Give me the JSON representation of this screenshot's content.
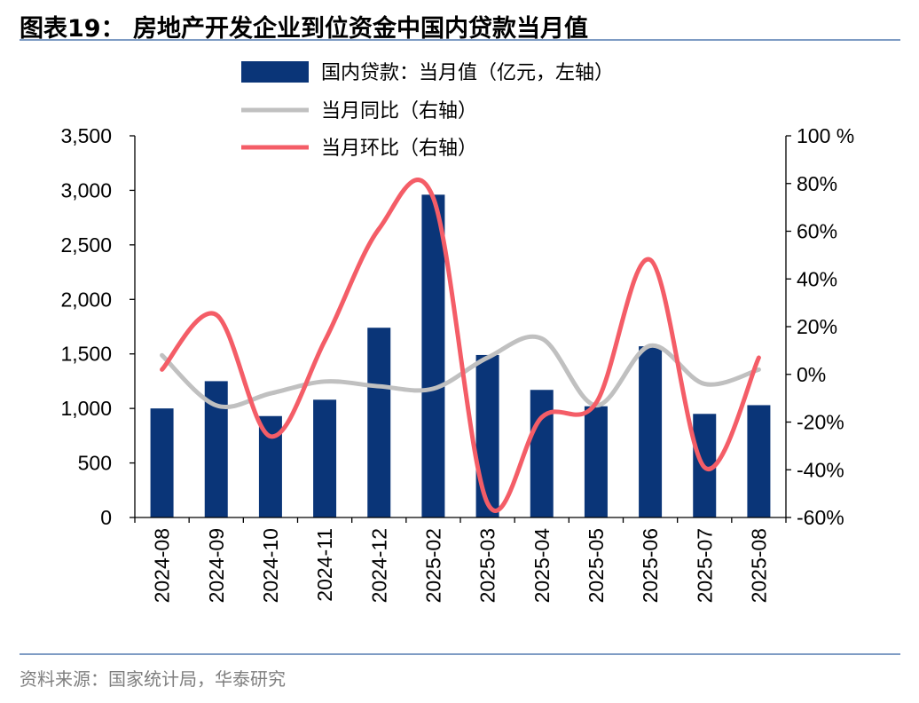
{
  "header": {
    "title": "图表19：  房地产开发企业到位资金中国内贷款当月值"
  },
  "footer": {
    "source": "资料来源：国家统计局，华泰研究"
  },
  "colors": {
    "bar": "#0a3578",
    "yoy_line": "#c0c0c0",
    "mom_line": "#f45d67",
    "rule": "#7f9cc4"
  },
  "chart_data": {
    "type": "bar",
    "categories": [
      "2024-08",
      "2024-09",
      "2024-10",
      "2024-11",
      "2024-12",
      "2025-02",
      "2025-03",
      "2025-04",
      "2025-05",
      "2025-06",
      "2025-07",
      "2025-08"
    ],
    "series": [
      {
        "name": "国内贷款：当月值（亿元，左轴）",
        "type": "bar",
        "axis": "left",
        "values": [
          1000,
          1250,
          930,
          1080,
          1740,
          2960,
          1490,
          1170,
          1020,
          1570,
          950,
          1030
        ]
      },
      {
        "name": "当月同比（右轴）",
        "type": "line",
        "axis": "right",
        "values": [
          8,
          -13,
          -8,
          -3,
          -5,
          -6,
          7,
          15,
          -13,
          12,
          -4,
          2
        ]
      },
      {
        "name": "当月环比（右轴）",
        "type": "line",
        "axis": "right",
        "values": [
          2,
          25,
          -26,
          14,
          61,
          74,
          -54,
          -18,
          -12,
          48,
          -39,
          7
        ]
      }
    ],
    "y_left": {
      "min": 0,
      "max": 3500,
      "ticks": [
        "0",
        "500",
        "1,000",
        "1,500",
        "2,000",
        "2,500",
        "3,000",
        "3,500"
      ]
    },
    "y_right": {
      "min": -60,
      "max": 100,
      "ticks": [
        "-60%",
        "-40%",
        "-20%",
        "0%",
        "20%",
        "40%",
        "60%",
        "80%",
        "100 %"
      ]
    },
    "grid": false,
    "legend_position": "top"
  }
}
